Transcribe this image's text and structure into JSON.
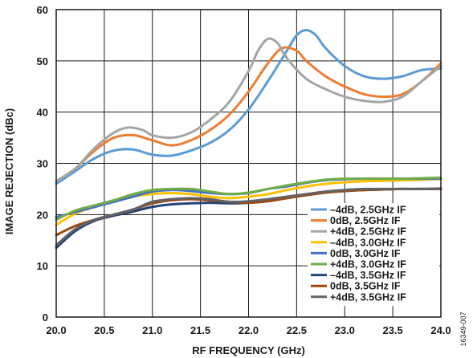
{
  "figure_id": "16349-007",
  "chart_data": {
    "type": "line",
    "title": "",
    "xlabel": "RF FREQUENCY (GHz)",
    "ylabel": "IMAGE REJECTION (dBc)",
    "xlim": [
      20.0,
      24.0
    ],
    "ylim": [
      0,
      60
    ],
    "xticks": [
      "20.0",
      "20.5",
      "21.0",
      "21.5",
      "22.0",
      "22.5",
      "23.0",
      "23.5",
      "24.0"
    ],
    "yticks": [
      "0",
      "10",
      "20",
      "30",
      "40",
      "50",
      "60"
    ],
    "grid": true,
    "legend_position": "bottom-right",
    "series": [
      {
        "name": "–4dB, 2.5GHz IF",
        "color": "#5b9bd5",
        "points": [
          [
            20.0,
            26.0
          ],
          [
            20.2,
            28.5
          ],
          [
            20.4,
            31.0
          ],
          [
            20.6,
            32.5
          ],
          [
            20.8,
            32.7
          ],
          [
            21.0,
            31.7
          ],
          [
            21.2,
            31.5
          ],
          [
            21.4,
            32.5
          ],
          [
            21.6,
            34.0
          ],
          [
            21.8,
            36.5
          ],
          [
            22.0,
            40.5
          ],
          [
            22.2,
            46.0
          ],
          [
            22.4,
            52.0
          ],
          [
            22.5,
            55.0
          ],
          [
            22.6,
            56.0
          ],
          [
            22.7,
            55.0
          ],
          [
            22.8,
            52.5
          ],
          [
            23.0,
            49.0
          ],
          [
            23.2,
            47.0
          ],
          [
            23.4,
            46.5
          ],
          [
            23.6,
            47.0
          ],
          [
            23.8,
            48.2
          ],
          [
            24.0,
            48.5
          ]
        ]
      },
      {
        "name": "0dB, 2.5GHz IF",
        "color": "#ed7d31",
        "points": [
          [
            20.0,
            26.5
          ],
          [
            20.2,
            29.0
          ],
          [
            20.4,
            32.5
          ],
          [
            20.6,
            35.0
          ],
          [
            20.8,
            35.5
          ],
          [
            21.0,
            34.5
          ],
          [
            21.2,
            33.5
          ],
          [
            21.4,
            34.5
          ],
          [
            21.6,
            36.5
          ],
          [
            21.8,
            39.5
          ],
          [
            22.0,
            44.0
          ],
          [
            22.2,
            49.5
          ],
          [
            22.35,
            52.5
          ],
          [
            22.5,
            52.0
          ],
          [
            22.6,
            50.0
          ],
          [
            22.8,
            47.0
          ],
          [
            23.0,
            45.0
          ],
          [
            23.2,
            43.5
          ],
          [
            23.4,
            43.0
          ],
          [
            23.6,
            43.5
          ],
          [
            23.8,
            46.0
          ],
          [
            24.0,
            49.5
          ]
        ]
      },
      {
        "name": "+4dB, 2.5GHz IF",
        "color": "#a5a5a5",
        "points": [
          [
            20.0,
            26.5
          ],
          [
            20.2,
            29.0
          ],
          [
            20.4,
            33.0
          ],
          [
            20.6,
            36.0
          ],
          [
            20.75,
            37.0
          ],
          [
            20.9,
            36.5
          ],
          [
            21.0,
            35.5
          ],
          [
            21.2,
            35.0
          ],
          [
            21.4,
            36.0
          ],
          [
            21.6,
            38.5
          ],
          [
            21.8,
            42.0
          ],
          [
            22.0,
            48.0
          ],
          [
            22.1,
            52.0
          ],
          [
            22.2,
            54.3
          ],
          [
            22.3,
            53.5
          ],
          [
            22.4,
            50.5
          ],
          [
            22.6,
            46.5
          ],
          [
            22.8,
            44.5
          ],
          [
            23.0,
            43.0
          ],
          [
            23.2,
            42.2
          ],
          [
            23.4,
            42.0
          ],
          [
            23.6,
            43.0
          ],
          [
            23.8,
            46.0
          ],
          [
            24.0,
            49.0
          ]
        ]
      },
      {
        "name": "–4dB, 3.0GHz IF",
        "color": "#ffc000",
        "points": [
          [
            20.0,
            18.0
          ],
          [
            20.2,
            20.2
          ],
          [
            20.4,
            21.5
          ],
          [
            20.6,
            22.5
          ],
          [
            20.8,
            23.5
          ],
          [
            21.0,
            24.0
          ],
          [
            21.2,
            24.2
          ],
          [
            21.4,
            24.0
          ],
          [
            21.6,
            23.5
          ],
          [
            21.8,
            23.2
          ],
          [
            22.0,
            23.5
          ],
          [
            22.2,
            24.0
          ],
          [
            22.4,
            24.8
          ],
          [
            22.6,
            25.5
          ],
          [
            22.8,
            26.0
          ],
          [
            23.0,
            26.3
          ],
          [
            23.2,
            26.5
          ],
          [
            23.4,
            26.6
          ],
          [
            23.6,
            26.7
          ],
          [
            23.8,
            26.8
          ],
          [
            24.0,
            27.0
          ]
        ]
      },
      {
        "name": "0dB, 3.0GHz IF",
        "color": "#4472c4",
        "points": [
          [
            20.0,
            19.5
          ],
          [
            20.2,
            20.5
          ],
          [
            20.4,
            21.5
          ],
          [
            20.6,
            22.5
          ],
          [
            20.8,
            23.5
          ],
          [
            21.0,
            24.5
          ],
          [
            21.2,
            24.8
          ],
          [
            21.4,
            24.6
          ],
          [
            21.6,
            24.2
          ],
          [
            21.8,
            24.0
          ],
          [
            22.0,
            24.2
          ],
          [
            22.2,
            25.0
          ],
          [
            22.4,
            25.5
          ],
          [
            22.6,
            26.2
          ],
          [
            22.8,
            26.7
          ],
          [
            23.0,
            26.9
          ],
          [
            23.2,
            27.0
          ],
          [
            23.4,
            27.0
          ],
          [
            23.6,
            27.0
          ],
          [
            23.8,
            27.0
          ],
          [
            24.0,
            27.0
          ]
        ]
      },
      {
        "name": "+4dB, 3.0GHz IF",
        "color": "#70ad47",
        "points": [
          [
            20.0,
            19.0
          ],
          [
            20.2,
            20.8
          ],
          [
            20.4,
            21.8
          ],
          [
            20.6,
            22.8
          ],
          [
            20.8,
            24.0
          ],
          [
            21.0,
            24.8
          ],
          [
            21.2,
            25.0
          ],
          [
            21.4,
            25.0
          ],
          [
            21.6,
            24.5
          ],
          [
            21.8,
            24.0
          ],
          [
            22.0,
            24.3
          ],
          [
            22.2,
            25.0
          ],
          [
            22.4,
            25.7
          ],
          [
            22.6,
            26.3
          ],
          [
            22.8,
            26.8
          ],
          [
            23.0,
            27.0
          ],
          [
            23.2,
            27.0
          ],
          [
            23.4,
            27.0
          ],
          [
            23.6,
            27.0
          ],
          [
            23.8,
            27.1
          ],
          [
            24.0,
            27.2
          ]
        ]
      },
      {
        "name": "–4dB, 3.5GHz IF",
        "color": "#264478",
        "points": [
          [
            20.0,
            13.5
          ],
          [
            20.2,
            16.8
          ],
          [
            20.4,
            18.8
          ],
          [
            20.6,
            19.8
          ],
          [
            20.8,
            20.6
          ],
          [
            21.0,
            21.5
          ],
          [
            21.2,
            22.0
          ],
          [
            21.4,
            22.2
          ],
          [
            21.6,
            22.3
          ],
          [
            21.8,
            22.2
          ],
          [
            22.0,
            22.3
          ],
          [
            22.2,
            22.8
          ],
          [
            22.4,
            23.3
          ],
          [
            22.6,
            23.8
          ],
          [
            22.8,
            24.3
          ],
          [
            23.0,
            24.6
          ],
          [
            23.2,
            24.8
          ],
          [
            23.4,
            24.9
          ],
          [
            23.6,
            25.0
          ],
          [
            23.8,
            25.0
          ],
          [
            24.0,
            25.0
          ]
        ]
      },
      {
        "name": "0dB, 3.5GHz IF",
        "color": "#9e480e",
        "points": [
          [
            20.0,
            16.0
          ],
          [
            20.2,
            17.8
          ],
          [
            20.4,
            19.0
          ],
          [
            20.6,
            20.0
          ],
          [
            20.8,
            21.0
          ],
          [
            21.0,
            22.2
          ],
          [
            21.2,
            22.8
          ],
          [
            21.4,
            23.0
          ],
          [
            21.6,
            22.8
          ],
          [
            21.8,
            22.5
          ],
          [
            22.0,
            22.3
          ],
          [
            22.2,
            22.6
          ],
          [
            22.4,
            23.2
          ],
          [
            22.6,
            23.8
          ],
          [
            22.8,
            24.3
          ],
          [
            23.0,
            24.6
          ],
          [
            23.2,
            24.8
          ],
          [
            23.4,
            24.9
          ],
          [
            23.6,
            25.0
          ],
          [
            23.8,
            25.0
          ],
          [
            24.0,
            25.0
          ]
        ]
      },
      {
        "name": "+4dB, 3.5GHz IF",
        "color": "#636363",
        "points": [
          [
            20.0,
            14.0
          ],
          [
            20.2,
            17.2
          ],
          [
            20.4,
            19.0
          ],
          [
            20.6,
            20.0
          ],
          [
            20.8,
            21.0
          ],
          [
            21.0,
            22.5
          ],
          [
            21.2,
            23.0
          ],
          [
            21.4,
            23.2
          ],
          [
            21.6,
            23.0
          ],
          [
            21.8,
            22.5
          ],
          [
            22.0,
            22.6
          ],
          [
            22.2,
            23.0
          ],
          [
            22.4,
            23.5
          ],
          [
            22.6,
            24.0
          ],
          [
            22.8,
            24.5
          ],
          [
            23.0,
            24.8
          ],
          [
            23.2,
            25.0
          ],
          [
            23.4,
            25.0
          ],
          [
            23.6,
            25.0
          ],
          [
            23.8,
            25.0
          ],
          [
            24.0,
            25.1
          ]
        ]
      }
    ]
  }
}
